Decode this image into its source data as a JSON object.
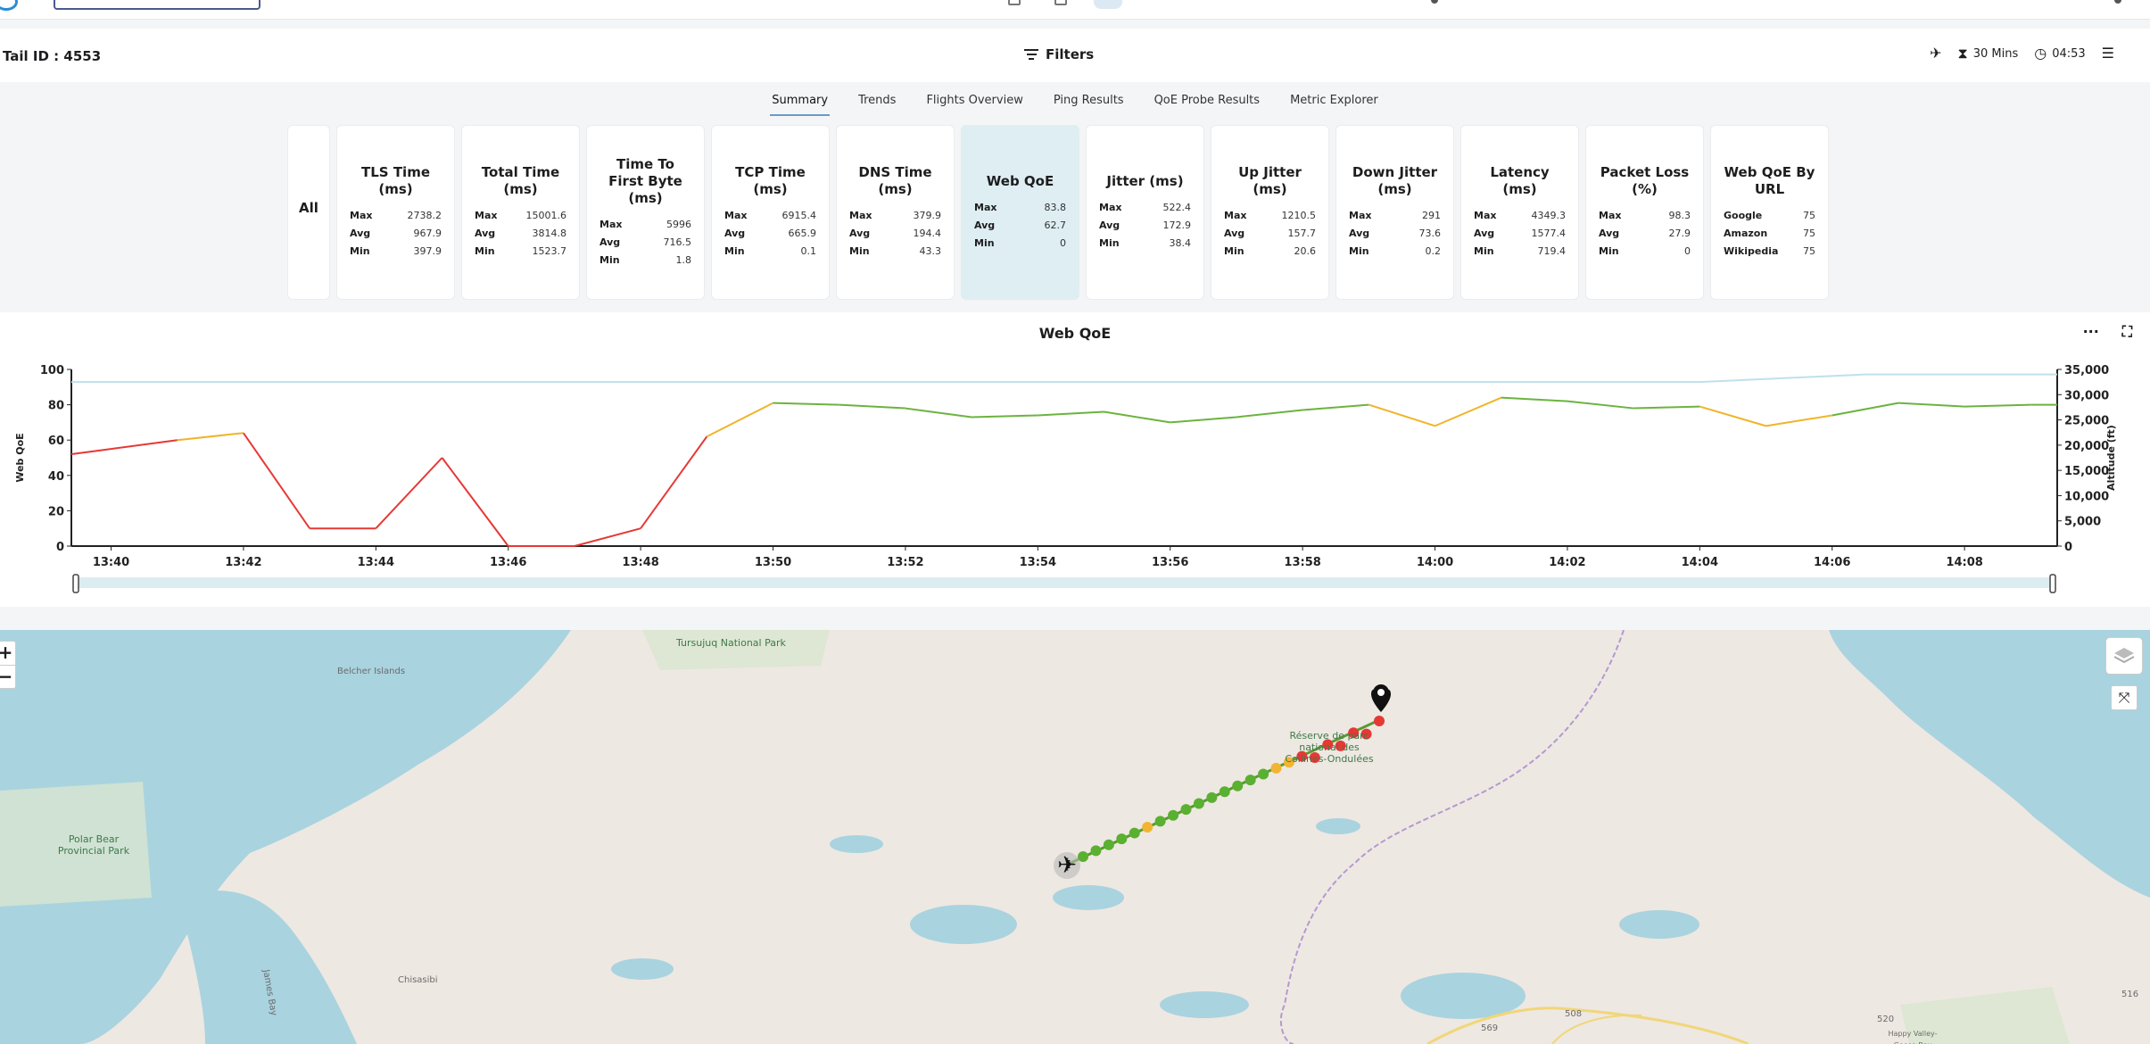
{
  "header": {
    "tail_id": "Tail ID : 4553",
    "filters_label": "Filters",
    "duration_label": "30 Mins",
    "clock_label": "04:53"
  },
  "tabs": [
    "Summary",
    "Trends",
    "Flights Overview",
    "Ping Results",
    "QoE Probe Results",
    "Metric Explorer"
  ],
  "active_tab": "Summary",
  "metric_all_label": "All",
  "metrics": [
    {
      "title": "TLS Time (ms)",
      "rows": [
        [
          "Max",
          "2738.2"
        ],
        [
          "Avg",
          "967.9"
        ],
        [
          "Min",
          "397.9"
        ]
      ]
    },
    {
      "title": "Total Time (ms)",
      "rows": [
        [
          "Max",
          "15001.6"
        ],
        [
          "Avg",
          "3814.8"
        ],
        [
          "Min",
          "1523.7"
        ]
      ]
    },
    {
      "title": "Time To First Byte (ms)",
      "rows": [
        [
          "Max",
          "5996"
        ],
        [
          "Avg",
          "716.5"
        ],
        [
          "Min",
          "1.8"
        ]
      ]
    },
    {
      "title": "TCP Time (ms)",
      "rows": [
        [
          "Max",
          "6915.4"
        ],
        [
          "Avg",
          "665.9"
        ],
        [
          "Min",
          "0.1"
        ]
      ]
    },
    {
      "title": "DNS Time (ms)",
      "rows": [
        [
          "Max",
          "379.9"
        ],
        [
          "Avg",
          "194.4"
        ],
        [
          "Min",
          "43.3"
        ]
      ]
    },
    {
      "title": "Web QoE",
      "active": true,
      "rows": [
        [
          "Max",
          "83.8"
        ],
        [
          "Avg",
          "62.7"
        ],
        [
          "Min",
          "0"
        ]
      ]
    },
    {
      "title": "Jitter (ms)",
      "rows": [
        [
          "Max",
          "522.4"
        ],
        [
          "Avg",
          "172.9"
        ],
        [
          "Min",
          "38.4"
        ]
      ]
    },
    {
      "title": "Up Jitter (ms)",
      "rows": [
        [
          "Max",
          "1210.5"
        ],
        [
          "Avg",
          "157.7"
        ],
        [
          "Min",
          "20.6"
        ]
      ]
    },
    {
      "title": "Down Jitter (ms)",
      "rows": [
        [
          "Max",
          "291"
        ],
        [
          "Avg",
          "73.6"
        ],
        [
          "Min",
          "0.2"
        ]
      ]
    },
    {
      "title": "Latency (ms)",
      "rows": [
        [
          "Max",
          "4349.3"
        ],
        [
          "Avg",
          "1577.4"
        ],
        [
          "Min",
          "719.4"
        ]
      ]
    },
    {
      "title": "Packet Loss (%)",
      "rows": [
        [
          "Max",
          "98.3"
        ],
        [
          "Avg",
          "27.9"
        ],
        [
          "Min",
          "0"
        ]
      ]
    },
    {
      "title": "Web QoE By URL",
      "rows": [
        [
          "Google",
          "75"
        ],
        [
          "Amazon",
          "75"
        ],
        [
          "Wikipedia",
          "75"
        ]
      ]
    }
  ],
  "chart_data": {
    "type": "line",
    "title": "Web QoE",
    "ylabel": "Web QoE",
    "y2label": "Altitude (ft)",
    "ylim": [
      0,
      100
    ],
    "y2lim": [
      0,
      35000
    ],
    "yticks": [
      0,
      20,
      40,
      60,
      80,
      100
    ],
    "y2ticks": [
      "0",
      "5,000",
      "10,000",
      "15,000",
      "20,000",
      "25,000",
      "30,000",
      "35,000"
    ],
    "xticks": [
      "13:40",
      "13:42",
      "13:44",
      "13:46",
      "13:48",
      "13:50",
      "13:52",
      "13:54",
      "13:56",
      "13:58",
      "14:00",
      "14:02",
      "14:04",
      "14:06",
      "14:08"
    ],
    "xrange_minutes": [
      -0.6,
      29.4
    ],
    "series": [
      {
        "name": "Web QoE",
        "points": [
          [
            -0.6,
            52
          ],
          [
            0,
            55
          ],
          [
            1,
            60
          ],
          [
            2,
            64
          ],
          [
            3,
            10
          ],
          [
            4,
            10
          ],
          [
            5,
            50
          ],
          [
            6,
            0
          ],
          [
            7,
            0
          ],
          [
            8,
            10
          ],
          [
            9,
            62
          ],
          [
            10,
            81
          ],
          [
            11,
            80
          ],
          [
            12,
            78
          ],
          [
            13,
            73
          ],
          [
            14,
            74
          ],
          [
            15,
            76
          ],
          [
            16,
            70
          ],
          [
            17,
            73
          ],
          [
            18,
            77
          ],
          [
            19,
            80
          ],
          [
            20,
            68
          ],
          [
            21,
            84
          ],
          [
            22,
            82
          ],
          [
            23,
            78
          ],
          [
            24,
            79
          ],
          [
            25,
            68
          ],
          [
            26,
            74
          ],
          [
            27,
            81
          ],
          [
            28,
            79
          ],
          [
            29,
            80
          ],
          [
            29.4,
            80
          ]
        ]
      },
      {
        "name": "Altitude",
        "points": [
          [
            -0.6,
            32500
          ],
          [
            24,
            32500
          ],
          [
            26.5,
            34000
          ],
          [
            29.4,
            34000
          ]
        ]
      }
    ],
    "colors": {
      "good": "#6cb33f",
      "warn": "#f0b429",
      "bad": "#e53935",
      "altitude": "#bfe0ec"
    }
  },
  "map": {
    "labels": [
      "Tursujuq National Park",
      "Belcher Islands",
      "Polar Bear Provincial Park",
      "Réserve de parc national des Collines-Ondulées",
      "James Bay",
      "Chisasibi",
      "569",
      "508",
      "516",
      "520",
      "Happy Valley-Goose Bay"
    ],
    "zoom_in": "+",
    "zoom_out": "−",
    "track_colors": [
      "green",
      "green",
      "green",
      "green",
      "green",
      "yellow",
      "green",
      "green",
      "green",
      "green",
      "green",
      "green",
      "green",
      "green",
      "green",
      "yellow",
      "yellow",
      "red",
      "red",
      "red",
      "red",
      "red",
      "red",
      "red"
    ]
  }
}
